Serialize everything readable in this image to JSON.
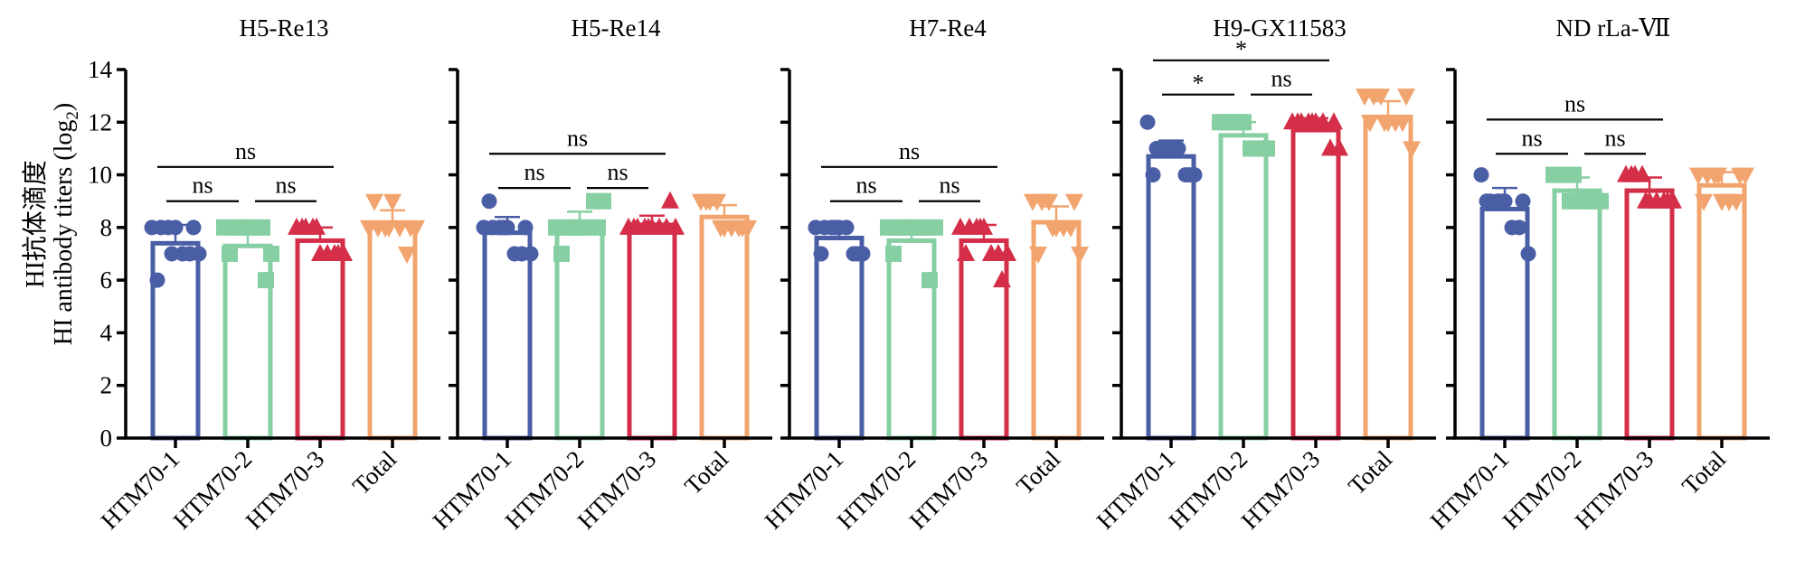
{
  "ylabel_lines": [
    "HI抗体滴度",
    "HI antibody titers (log",
    "2",
    ")"
  ],
  "colors": {
    "HTM70-1": "#4a5ea6",
    "HTM70-2": "#86cfa3",
    "HTM70-3": "#d42e48",
    "Total": "#f2a46e"
  },
  "chart_data": [
    {
      "type": "bar",
      "title": "H5-Re13",
      "categories": [
        "HTM70-1",
        "HTM70-2",
        "HTM70-3",
        "Total"
      ],
      "values": [
        7.4,
        7.3,
        7.5,
        8.1
      ],
      "error": [
        0.7,
        0.7,
        0.5,
        0.55
      ],
      "points": [
        [
          8,
          8,
          8,
          8,
          7,
          7,
          7,
          6,
          8,
          7
        ],
        [
          8,
          8,
          8,
          8,
          8,
          8,
          7,
          7,
          6,
          8
        ],
        [
          8,
          8,
          8,
          7,
          7,
          7,
          7,
          8,
          7,
          8
        ],
        [
          8,
          8,
          8,
          9,
          8,
          7,
          8,
          9,
          8,
          8
        ]
      ],
      "markers": [
        "circle",
        "square",
        "triangle-up",
        "triangle-down"
      ],
      "ylim": [
        0,
        14
      ],
      "yticks": [
        0,
        2,
        4,
        6,
        8,
        10,
        12,
        14
      ],
      "comparisons": [
        {
          "from": 0,
          "to": 1,
          "label": "ns",
          "level": 1
        },
        {
          "from": 1,
          "to": 2,
          "label": "ns",
          "level": 1
        },
        {
          "from": 0,
          "to": 2,
          "label": "ns",
          "level": 2
        }
      ]
    },
    {
      "type": "bar",
      "title": "H5-Re14",
      "categories": [
        "HTM70-1",
        "HTM70-2",
        "HTM70-3",
        "Total"
      ],
      "values": [
        7.8,
        8.1,
        8.1,
        8.4
      ],
      "error": [
        0.6,
        0.5,
        0.35,
        0.45
      ],
      "points": [
        [
          8,
          8,
          8,
          8,
          7,
          7,
          7,
          9,
          8,
          8
        ],
        [
          8,
          8,
          8,
          8,
          8,
          9,
          9,
          7,
          8,
          8
        ],
        [
          8,
          8,
          8,
          8,
          8,
          8,
          8,
          8,
          9,
          8
        ],
        [
          9,
          9,
          9,
          8,
          8,
          8,
          8,
          9,
          8,
          8
        ]
      ],
      "markers": [
        "circle",
        "square",
        "triangle-up",
        "triangle-down"
      ],
      "ylim": [
        0,
        14
      ],
      "yticks": [
        0,
        2,
        4,
        6,
        8,
        10,
        12,
        14
      ],
      "comparisons": [
        {
          "from": 0,
          "to": 1,
          "label": "ns",
          "level": 1
        },
        {
          "from": 1,
          "to": 2,
          "label": "ns",
          "level": 1
        },
        {
          "from": 0,
          "to": 2,
          "label": "ns",
          "level": 2
        }
      ]
    },
    {
      "type": "bar",
      "title": "H7-Re4",
      "categories": [
        "HTM70-1",
        "HTM70-2",
        "HTM70-3",
        "Total"
      ],
      "values": [
        7.6,
        7.5,
        7.5,
        8.2
      ],
      "error": [
        0.3,
        0.6,
        0.6,
        0.6
      ],
      "points": [
        [
          8,
          8,
          8,
          8,
          8,
          7,
          7,
          7,
          7,
          8
        ],
        [
          8,
          8,
          8,
          8,
          8,
          8,
          8,
          7,
          6,
          8
        ],
        [
          8,
          8,
          8,
          8,
          7,
          7,
          7,
          7,
          6,
          8
        ],
        [
          9,
          9,
          9,
          8,
          8,
          8,
          7,
          7,
          9,
          8
        ]
      ],
      "markers": [
        "circle",
        "square",
        "triangle-up",
        "triangle-down"
      ],
      "ylim": [
        0,
        14
      ],
      "yticks": [
        0,
        2,
        4,
        6,
        8,
        10,
        12,
        14
      ],
      "comparisons": [
        {
          "from": 0,
          "to": 1,
          "label": "ns",
          "level": 1
        },
        {
          "from": 1,
          "to": 2,
          "label": "ns",
          "level": 1
        },
        {
          "from": 0,
          "to": 2,
          "label": "ns",
          "level": 2
        }
      ]
    },
    {
      "type": "bar",
      "title": "H9-GX11583",
      "categories": [
        "HTM70-1",
        "HTM70-2",
        "HTM70-3",
        "Total"
      ],
      "values": [
        10.7,
        11.5,
        11.7,
        12.2
      ],
      "error": [
        0.6,
        0.5,
        0.45,
        0.6
      ],
      "points": [
        [
          12,
          11,
          11,
          11,
          11,
          10,
          10,
          10,
          10,
          11
        ],
        [
          12,
          12,
          12,
          12,
          11,
          11,
          11,
          12,
          11,
          12
        ],
        [
          12,
          12,
          12,
          12,
          12,
          11,
          11,
          12,
          12,
          12
        ],
        [
          13,
          13,
          13,
          12,
          12,
          12,
          11,
          12,
          13,
          12
        ]
      ],
      "markers": [
        "circle",
        "square",
        "triangle-up",
        "triangle-down"
      ],
      "ylim": [
        0,
        14
      ],
      "yticks": [
        0,
        2,
        4,
        6,
        8,
        10,
        12,
        14
      ],
      "comparisons": [
        {
          "from": 0,
          "to": 1,
          "label": "*",
          "level": 1
        },
        {
          "from": 1,
          "to": 2,
          "label": "ns",
          "level": 1
        },
        {
          "from": 0,
          "to": 2,
          "label": "*",
          "level": 2
        }
      ]
    },
    {
      "type": "bar",
      "title": "ND rLa-Ⅶ",
      "categories": [
        "HTM70-1",
        "HTM70-2",
        "HTM70-3",
        "Total"
      ],
      "values": [
        8.7,
        9.4,
        9.4,
        9.6
      ],
      "error": [
        0.8,
        0.5,
        0.5,
        0.5
      ],
      "points": [
        [
          10,
          9,
          9,
          9,
          8,
          8,
          7,
          9,
          9,
          9
        ],
        [
          10,
          10,
          9,
          9,
          9,
          9,
          9,
          10,
          9,
          10
        ],
        [
          10,
          10,
          10,
          9,
          9,
          9,
          9,
          10,
          9,
          9
        ],
        [
          10,
          10,
          10,
          9,
          9,
          9,
          10,
          9,
          10,
          10
        ]
      ],
      "markers": [
        "circle",
        "square",
        "triangle-up",
        "triangle-down"
      ],
      "ylim": [
        0,
        14
      ],
      "yticks": [
        0,
        2,
        4,
        6,
        8,
        10,
        12,
        14
      ],
      "comparisons": [
        {
          "from": 0,
          "to": 1,
          "label": "ns",
          "level": 1
        },
        {
          "from": 1,
          "to": 2,
          "label": "ns",
          "level": 1
        },
        {
          "from": 0,
          "to": 2,
          "label": "ns",
          "level": 2
        }
      ]
    }
  ]
}
